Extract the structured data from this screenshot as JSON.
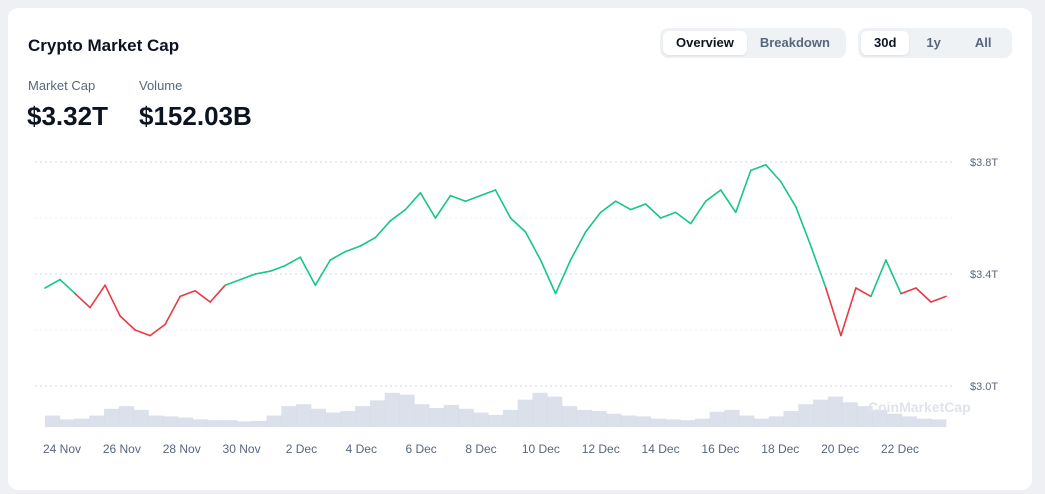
{
  "header": {
    "title": "Crypto Market Cap"
  },
  "view_tabs": [
    {
      "label": "Overview",
      "active": true
    },
    {
      "label": "Breakdown",
      "active": false
    }
  ],
  "range_tabs": [
    {
      "label": "30d",
      "active": true
    },
    {
      "label": "1y",
      "active": false
    },
    {
      "label": "All",
      "active": false
    }
  ],
  "stats": {
    "market_cap_label": "Market Cap",
    "market_cap_value": "$3.32T",
    "volume_label": "Volume",
    "volume_value": "$152.03B"
  },
  "watermark": "CoinMarketCap",
  "colors": {
    "up": "#16c784",
    "down": "#ea3943",
    "volume": "#cfd6e4",
    "grid": "#d5dae3"
  },
  "chart_data": {
    "type": "line",
    "title": "",
    "xlabel": "",
    "ylabel": "",
    "x_tick_labels": [
      "24 Nov",
      "26 Nov",
      "28 Nov",
      "30 Nov",
      "2 Dec",
      "4 Dec",
      "6 Dec",
      "8 Dec",
      "10 Dec",
      "12 Dec",
      "14 Dec",
      "16 Dec",
      "18 Dec",
      "20 Dec",
      "22 Dec"
    ],
    "y_tick_labels": [
      "$3.8T",
      "$3.4T",
      "$3.0T"
    ],
    "y_ticks": [
      3.8,
      3.4,
      3.0
    ],
    "ylim": [
      2.9,
      3.85
    ],
    "grid": true,
    "baseline": 3.35,
    "series": [
      {
        "x": [
          "23 Nov",
          "24 Nov",
          "24 Nov",
          "25 Nov",
          "25 Nov",
          "26 Nov",
          "26 Nov",
          "27 Nov",
          "27 Nov",
          "28 Nov",
          "28 Nov",
          "29 Nov",
          "29 Nov",
          "30 Nov",
          "30 Nov",
          "1 Dec",
          "1 Dec",
          "2 Dec",
          "2 Dec",
          "3 Dec",
          "3 Dec",
          "4 Dec",
          "4 Dec",
          "5 Dec",
          "5 Dec",
          "6 Dec",
          "6 Dec",
          "7 Dec",
          "7 Dec",
          "8 Dec",
          "8 Dec",
          "9 Dec",
          "9 Dec",
          "10 Dec",
          "10 Dec",
          "11 Dec",
          "11 Dec",
          "12 Dec",
          "12 Dec",
          "13 Dec",
          "13 Dec",
          "14 Dec",
          "14 Dec",
          "15 Dec",
          "15 Dec",
          "16 Dec",
          "16 Dec",
          "17 Dec",
          "17 Dec",
          "18 Dec",
          "18 Dec",
          "19 Dec",
          "19 Dec",
          "20 Dec",
          "20 Dec",
          "21 Dec",
          "21 Dec",
          "22 Dec",
          "22 Dec",
          "23 Dec",
          "23 Dec"
        ],
        "values": [
          3.35,
          3.38,
          3.33,
          3.28,
          3.36,
          3.25,
          3.2,
          3.18,
          3.22,
          3.32,
          3.34,
          3.3,
          3.36,
          3.38,
          3.4,
          3.41,
          3.43,
          3.46,
          3.36,
          3.45,
          3.48,
          3.5,
          3.53,
          3.59,
          3.63,
          3.69,
          3.6,
          3.68,
          3.66,
          3.68,
          3.7,
          3.6,
          3.55,
          3.45,
          3.33,
          3.45,
          3.55,
          3.62,
          3.66,
          3.63,
          3.65,
          3.6,
          3.62,
          3.58,
          3.66,
          3.7,
          3.62,
          3.77,
          3.79,
          3.73,
          3.64,
          3.5,
          3.35,
          3.18,
          3.35,
          3.32,
          3.45,
          3.33,
          3.35,
          3.3,
          3.32
        ]
      }
    ],
    "volume_series": {
      "name": "Volume",
      "values": [
        0.3,
        0.2,
        0.22,
        0.3,
        0.48,
        0.55,
        0.45,
        0.3,
        0.28,
        0.25,
        0.2,
        0.18,
        0.18,
        0.15,
        0.16,
        0.3,
        0.55,
        0.6,
        0.48,
        0.38,
        0.42,
        0.55,
        0.7,
        0.9,
        0.85,
        0.6,
        0.5,
        0.58,
        0.48,
        0.38,
        0.32,
        0.45,
        0.72,
        0.9,
        0.8,
        0.55,
        0.45,
        0.42,
        0.35,
        0.3,
        0.28,
        0.22,
        0.2,
        0.18,
        0.22,
        0.4,
        0.45,
        0.3,
        0.22,
        0.28,
        0.42,
        0.6,
        0.72,
        0.8,
        0.65,
        0.55,
        0.45,
        0.35,
        0.28,
        0.22,
        0.2
      ]
    }
  }
}
